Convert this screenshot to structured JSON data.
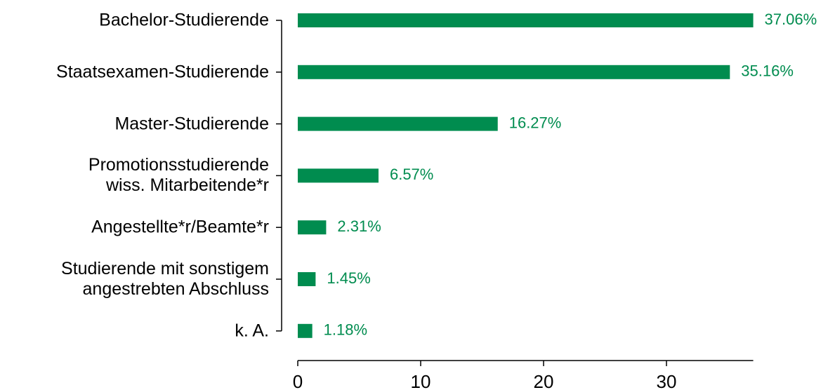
{
  "chart_data": {
    "type": "barh",
    "categories": [
      "Bachelor-Studierende",
      "Staatsexamen-Studierende",
      "Master-Studierende",
      "Promotionsstudierende\nwiss. Mitarbeitende*r",
      "Angestellte*r/Beamte*r",
      "Studierende mit sonstigem\nangestrebten Abschluss",
      "k. A."
    ],
    "values": [
      37.06,
      35.16,
      16.27,
      6.57,
      2.31,
      1.45,
      1.18
    ],
    "value_labels": [
      "37.06%",
      "35.16%",
      "16.27%",
      "6.57%",
      "2.31%",
      "1.45%",
      "1.18%"
    ],
    "color": "#008c4f",
    "xlim": [
      0,
      37.06
    ],
    "xticks": [
      0,
      10,
      20,
      30
    ]
  }
}
